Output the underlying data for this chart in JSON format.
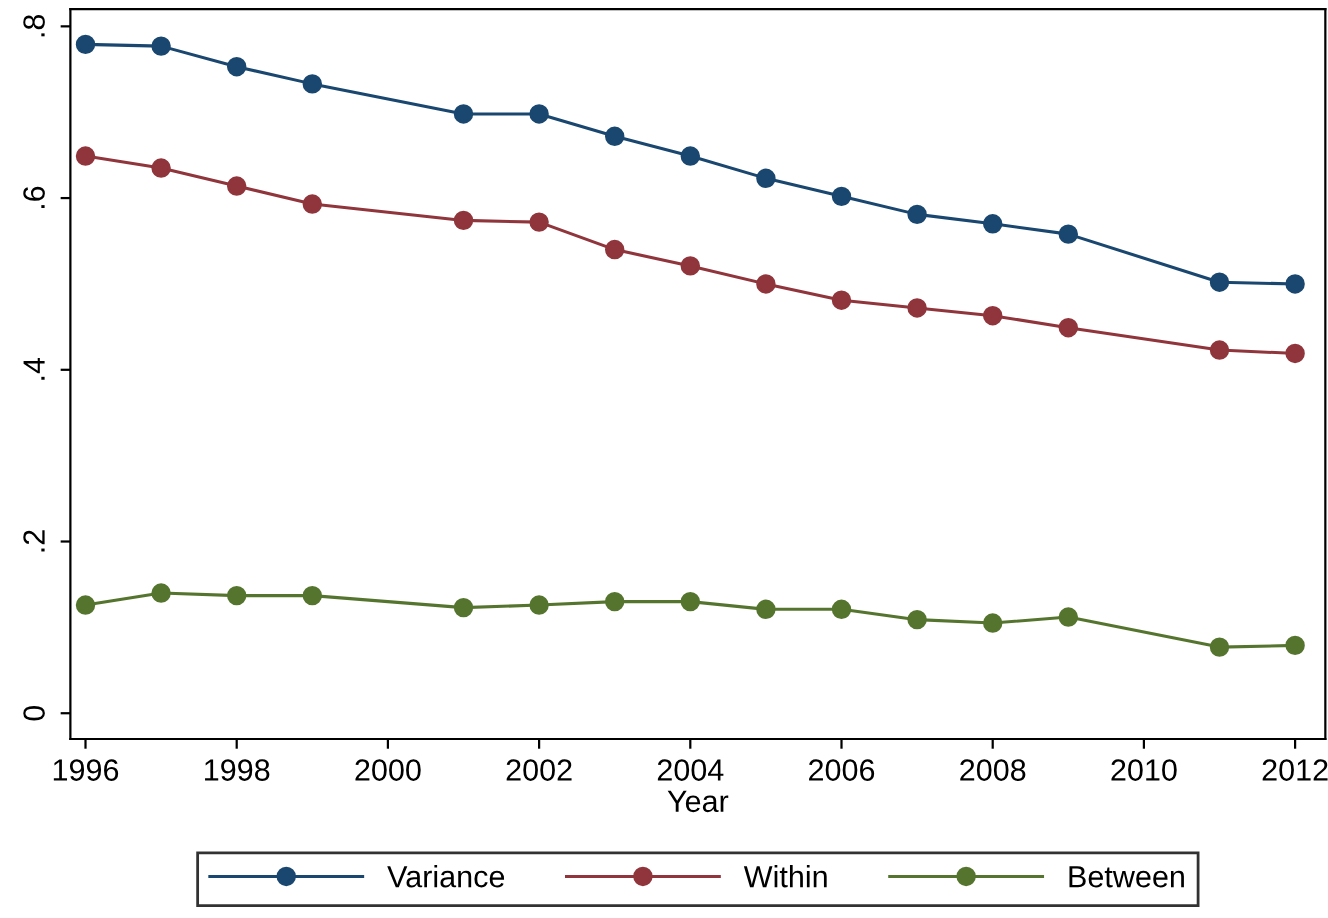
{
  "chart_data": {
    "type": "line",
    "xlabel": "Year",
    "x": [
      1996,
      1997,
      1998,
      1999,
      2001,
      2002,
      2003,
      2004,
      2005,
      2006,
      2007,
      2008,
      2009,
      2011,
      2012
    ],
    "series": [
      {
        "name": "Variance",
        "color": "#1a476f",
        "values": [
          0.779,
          0.777,
          0.753,
          0.733,
          0.698,
          0.698,
          0.672,
          0.649,
          0.623,
          0.602,
          0.581,
          0.57,
          0.558,
          0.502,
          0.5
        ]
      },
      {
        "name": "Within",
        "color": "#90353b",
        "values": [
          0.649,
          0.635,
          0.614,
          0.593,
          0.574,
          0.572,
          0.54,
          0.521,
          0.5,
          0.481,
          0.472,
          0.463,
          0.449,
          0.423,
          0.419
        ]
      },
      {
        "name": "Between",
        "color": "#55752f",
        "values": [
          0.126,
          0.14,
          0.137,
          0.137,
          0.123,
          0.126,
          0.13,
          0.13,
          0.121,
          0.121,
          0.109,
          0.105,
          0.112,
          0.077,
          0.079
        ]
      }
    ],
    "xlim": [
      1995.8,
      2012.4
    ],
    "xticks": [
      1996,
      1998,
      2000,
      2002,
      2004,
      2006,
      2008,
      2010,
      2012
    ],
    "ylim": [
      -0.03,
      0.82
    ],
    "yticks": [
      {
        "value": 0,
        "label": "0"
      },
      {
        "value": 0.2,
        "label": ".2"
      },
      {
        "value": 0.4,
        "label": ".4"
      },
      {
        "value": 0.6,
        "label": ".6"
      },
      {
        "value": 0.8,
        "label": ".8"
      }
    ],
    "marker": "circle",
    "line_style": "solid",
    "grid": false,
    "legend": "bottom"
  }
}
